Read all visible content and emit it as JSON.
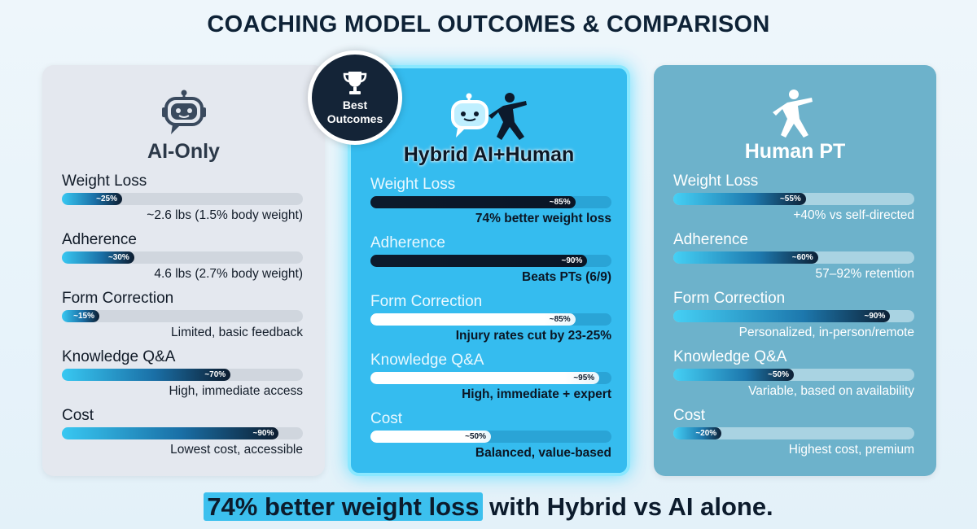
{
  "title": "COACHING MODEL OUTCOMES & COMPARISON",
  "badge": {
    "line1": "Best",
    "line2": "Outcomes"
  },
  "footer": {
    "highlight": "74% better weight loss",
    "rest": " with Hybrid vs AI alone."
  },
  "colors": {
    "ai_card": "#e4e8ef",
    "hybrid_card": "#35bcef",
    "human_card": "#6db2cb",
    "dark": "#0c1a2c"
  },
  "icons": {
    "ai": "robot-icon",
    "hybrid": "robot-and-trainer-icon",
    "human": "trainer-icon",
    "badge": "trophy-icon"
  },
  "chart_data": {
    "type": "bar",
    "categories": [
      "Weight Loss",
      "Adherence",
      "Form Correction",
      "Knowledge Q&A",
      "Cost"
    ],
    "models": [
      {
        "name": "AI-Only",
        "metrics": [
          {
            "label": "Weight Loss",
            "value": 25,
            "value_label": "~25%",
            "note": "~2.6 lbs (1.5% body weight)"
          },
          {
            "label": "Adherence",
            "value": 30,
            "value_label": "~30%",
            "note": "4.6 lbs (2.7% body weight)"
          },
          {
            "label": "Form Correction",
            "value": 15,
            "value_label": "~15%",
            "note": "Limited, basic feedback"
          },
          {
            "label": "Knowledge Q&A",
            "value": 70,
            "value_label": "~70%",
            "note": "High, immediate access"
          },
          {
            "label": "Cost",
            "value": 90,
            "value_label": "~90%",
            "note": "Lowest cost, accessible"
          }
        ]
      },
      {
        "name": "Hybrid AI+Human",
        "metrics": [
          {
            "label": "Weight Loss",
            "value": 85,
            "value_label": "~85%",
            "note": "74% better weight loss"
          },
          {
            "label": "Adherence",
            "value": 90,
            "value_label": "~90%",
            "note": "Beats PTs (6/9)"
          },
          {
            "label": "Form Correction",
            "value": 85,
            "value_label": "~85%",
            "note": "Injury rates cut by 23-25%"
          },
          {
            "label": "Knowledge Q&A",
            "value": 95,
            "value_label": "~95%",
            "note": "High, immediate + expert"
          },
          {
            "label": "Cost",
            "value": 50,
            "value_label": "~50%",
            "note": "Balanced, value-based"
          }
        ]
      },
      {
        "name": "Human PT",
        "metrics": [
          {
            "label": "Weight Loss",
            "value": 55,
            "value_label": "~55%",
            "note": "+40% vs self-directed"
          },
          {
            "label": "Adherence",
            "value": 60,
            "value_label": "~60%",
            "note": "57–92% retention"
          },
          {
            "label": "Form Correction",
            "value": 90,
            "value_label": "~90%",
            "note": "Personalized, in-person/remote"
          },
          {
            "label": "Knowledge Q&A",
            "value": 50,
            "value_label": "~50%",
            "note": "Variable, based on availability"
          },
          {
            "label": "Cost",
            "value": 20,
            "value_label": "~20%",
            "note": "Highest cost, premium"
          }
        ]
      }
    ],
    "ylim": [
      0,
      100
    ],
    "title": "COACHING MODEL OUTCOMES & COMPARISON"
  }
}
